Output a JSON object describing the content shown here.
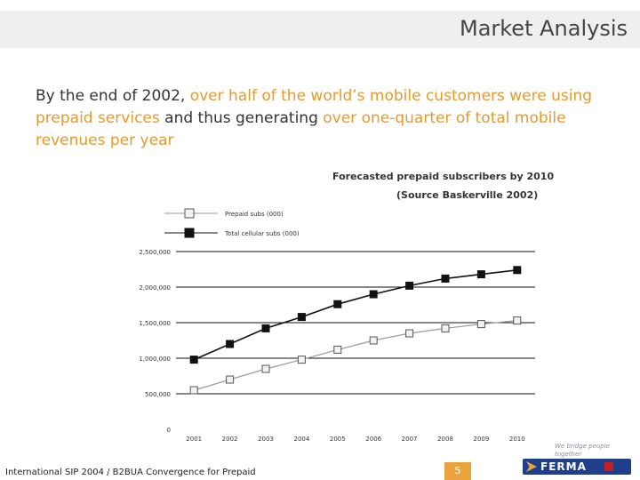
{
  "header": {
    "title": "Market Analysis"
  },
  "intro": {
    "p1": "By the end of 2002, ",
    "h1": "over half of the world’s mobile customers were using prepaid services",
    "p2": " and thus generating ",
    "h2": "over one-quarter of total mobile revenues per year"
  },
  "colors": {
    "highlight": "#e59a2a",
    "accent": "#e8a33c",
    "logo_blue": "#1f3f8a",
    "logo_red": "#c42020"
  },
  "chart_data": {
    "type": "line",
    "title": "Forecasted prepaid subscribers by 2010",
    "subtitle": "(Source Baskerville 2002)",
    "categories": [
      "2001",
      "2002",
      "2003",
      "2004",
      "2005",
      "2006",
      "2007",
      "2008",
      "2009",
      "2010"
    ],
    "series": [
      {
        "name": "Prepaid subs (000)",
        "marker": "hollow-square",
        "values": [
          550000,
          700000,
          850000,
          980000,
          1120000,
          1250000,
          1350000,
          1420000,
          1480000,
          1530000
        ]
      },
      {
        "name": "Total cellular subs (000)",
        "marker": "filled-square",
        "values": [
          980000,
          1200000,
          1420000,
          1580000,
          1760000,
          1900000,
          2020000,
          2120000,
          2180000,
          2240000
        ]
      }
    ],
    "yticks": [
      "0",
      "500,000",
      "1,000,000",
      "1,500,000",
      "2,000,000",
      "2,500,000"
    ],
    "ylim": [
      0,
      2500000
    ],
    "grid": true,
    "legend": "top-left"
  },
  "footer": {
    "text": "International SIP 2004 / B2BUA Convergence for Prepaid",
    "page": "5",
    "tagline": "We bridge people together",
    "logo": "FERMA"
  }
}
